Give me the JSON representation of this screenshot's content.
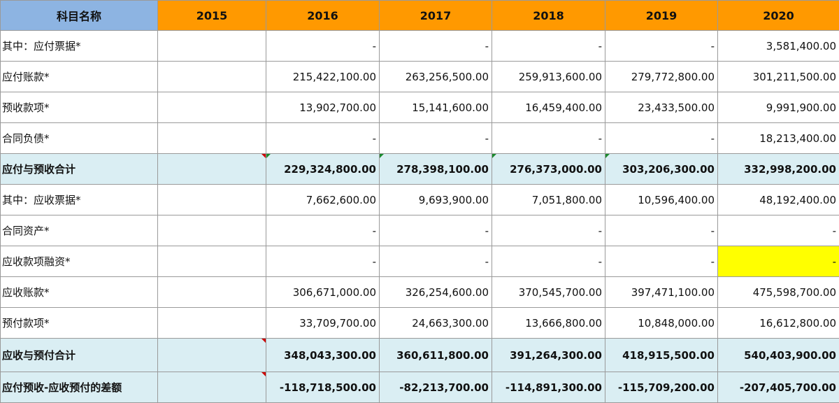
{
  "header": {
    "name": "科目名称",
    "years": [
      "2015",
      "2016",
      "2017",
      "2018",
      "2019",
      "2020"
    ]
  },
  "rows": [
    {
      "label": "其中：应付票据*",
      "values": [
        "",
        "-",
        "-",
        "-",
        "-",
        "3,581,400.00"
      ]
    },
    {
      "label": "应付账款*",
      "values": [
        "",
        "215,422,100.00",
        "263,256,500.00",
        "259,913,600.00",
        "279,772,800.00",
        "301,211,500.00"
      ]
    },
    {
      "label": "预收款项*",
      "values": [
        "",
        "13,902,700.00",
        "15,141,600.00",
        "16,459,400.00",
        "23,433,500.00",
        "9,991,900.00"
      ]
    },
    {
      "label": "合同负债*",
      "values": [
        "",
        "-",
        "-",
        "-",
        "-",
        "18,213,400.00"
      ]
    },
    {
      "label": "应付与预收合计",
      "values": [
        "",
        "229,324,800.00",
        "278,398,100.00",
        "276,373,000.00",
        "303,206,300.00",
        "332,998,200.00"
      ]
    },
    {
      "label": "其中：应收票据*",
      "values": [
        "",
        "7,662,600.00",
        "9,693,900.00",
        "7,051,800.00",
        "10,596,400.00",
        "48,192,400.00"
      ]
    },
    {
      "label": "合同资产*",
      "values": [
        "",
        "-",
        "-",
        "-",
        "-",
        "-"
      ]
    },
    {
      "label": "应收款项融资*",
      "values": [
        "",
        "-",
        "-",
        "-",
        "-",
        "-"
      ]
    },
    {
      "label": "应收账款*",
      "values": [
        "",
        "306,671,000.00",
        "326,254,600.00",
        "370,545,700.00",
        "397,471,100.00",
        "475,598,700.00"
      ]
    },
    {
      "label": "预付款项*",
      "values": [
        "",
        "33,709,700.00",
        "24,663,300.00",
        "13,666,800.00",
        "10,848,000.00",
        "16,612,800.00"
      ]
    },
    {
      "label": "应收与预付合计",
      "values": [
        "",
        "348,043,300.00",
        "360,611,800.00",
        "391,264,300.00",
        "418,915,500.00",
        "540,403,900.00"
      ]
    },
    {
      "label": "应付预收-应收预付的差额",
      "values": [
        "",
        "-118,718,500.00",
        "-82,213,700.00",
        "-114,891,300.00",
        "-115,709,200.00",
        "-207,405,700.00"
      ]
    }
  ],
  "colors": {
    "header_orange": "#ff9900",
    "header_blue": "#8db4e2",
    "total_row": "#daeef3",
    "highlight": "#ffff00"
  }
}
